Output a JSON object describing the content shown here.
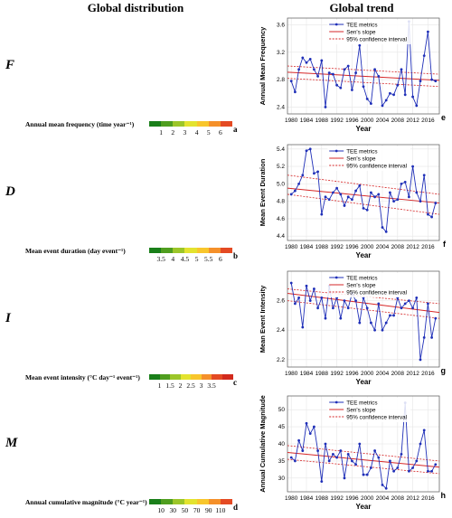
{
  "headers": {
    "left": "Global distribution",
    "right": "Global trend"
  },
  "colors": {
    "series": "#1f2fb8",
    "sen": "#d62728",
    "ci": "#d62728",
    "grid": "#e6e6e6"
  },
  "rows": [
    {
      "id": "F",
      "map_title": "Annual mean frequency (time year⁻¹)",
      "map_letter": "a",
      "cbar_colors": [
        "#1a7f1a",
        "#4f9e1f",
        "#9cc629",
        "#e3e32f",
        "#f8c62c",
        "#f5902a",
        "#e44a23"
      ],
      "cbar_ticks": [
        "1",
        "2",
        "3",
        "4",
        "5",
        "6"
      ],
      "map_palette": [
        "#3f8f25",
        "#9cc629",
        "#d7dd2c",
        "#f3c22d",
        "#f09128"
      ]
    },
    {
      "id": "D",
      "map_title": "Mean event duration (day event⁻¹)",
      "map_letter": "b",
      "cbar_colors": [
        "#1a7f1a",
        "#4f9e1f",
        "#9cc629",
        "#e3e32f",
        "#f8c62c",
        "#f5902a",
        "#e44a23"
      ],
      "cbar_ticks": [
        "3.5",
        "4",
        "4.5",
        "5",
        "5.5",
        "6"
      ],
      "map_palette": [
        "#2f8522",
        "#6cab22",
        "#cad72b",
        "#f0c62c",
        "#e5612a"
      ]
    },
    {
      "id": "I",
      "map_title": "Mean event intensity (°C day⁻¹ event⁻¹)",
      "map_letter": "c",
      "cbar_colors": [
        "#1a7f1a",
        "#4f9e1f",
        "#9cc629",
        "#e3e32f",
        "#f8c62c",
        "#f5902a",
        "#e44a23",
        "#d22a1d"
      ],
      "cbar_ticks": [
        "1",
        "1.5",
        "2",
        "2.5",
        "3",
        "3.5"
      ],
      "map_palette": [
        "#3b8d22",
        "#8ebe26",
        "#e0d92c",
        "#f4a22b",
        "#e2462a"
      ]
    },
    {
      "id": "M",
      "map_title": "Annual cumulative magnitude (°C year⁻¹)",
      "map_letter": "d",
      "cbar_colors": [
        "#1a7f1a",
        "#4f9e1f",
        "#9cc629",
        "#e3e32f",
        "#f8c62c",
        "#f5902a",
        "#e44a23"
      ],
      "cbar_ticks": [
        "10",
        "30",
        "50",
        "70",
        "90",
        "110"
      ],
      "map_palette": [
        "#1e7a1c",
        "#3b8d22",
        "#62a523",
        "#9cc629",
        "#c6d22b"
      ]
    }
  ],
  "chart_data": [
    {
      "type": "line",
      "letter": "e",
      "xlabel": "Year",
      "ylabel": "Annual Mean Frequency",
      "xlim": [
        1979,
        2019
      ],
      "ylim": [
        2.3,
        3.7
      ],
      "xticks": [
        1980,
        1984,
        1988,
        1992,
        1996,
        2000,
        2004,
        2008,
        2012,
        2016
      ],
      "yticks": [
        2.4,
        2.8,
        3.2,
        3.6
      ],
      "legend": [
        "TEE metrics",
        "Sen's slope",
        "95% confidence interval"
      ],
      "x": [
        1980,
        1981,
        1982,
        1983,
        1984,
        1985,
        1986,
        1987,
        1988,
        1989,
        1990,
        1991,
        1992,
        1993,
        1994,
        1995,
        1996,
        1997,
        1998,
        1999,
        2000,
        2001,
        2002,
        2003,
        2004,
        2005,
        2006,
        2007,
        2008,
        2009,
        2010,
        2011,
        2012,
        2013,
        2014,
        2015,
        2016,
        2017,
        2018
      ],
      "y": [
        2.78,
        2.62,
        2.95,
        3.12,
        3.05,
        3.1,
        2.95,
        2.85,
        3.08,
        2.4,
        2.9,
        2.88,
        2.72,
        2.68,
        2.95,
        3.0,
        2.65,
        2.9,
        3.3,
        2.7,
        2.52,
        2.45,
        2.95,
        2.85,
        2.42,
        2.5,
        2.6,
        2.58,
        2.72,
        2.95,
        2.58,
        3.65,
        2.55,
        2.42,
        2.78,
        3.15,
        3.5,
        2.8,
        2.78
      ],
      "sen": [
        2.91,
        2.79
      ],
      "ci_upper": [
        3.0,
        2.88
      ],
      "ci_lower": [
        2.82,
        2.7
      ]
    },
    {
      "type": "line",
      "letter": "f",
      "xlabel": "Year",
      "ylabel": "Mean Event Duration",
      "xlim": [
        1979,
        2019
      ],
      "ylim": [
        4.35,
        5.45
      ],
      "xticks": [
        1980,
        1984,
        1988,
        1992,
        1996,
        2000,
        2004,
        2008,
        2012,
        2016
      ],
      "yticks": [
        4.4,
        4.6,
        4.8,
        5.0,
        5.2,
        5.4
      ],
      "legend": [
        "TEE metrics",
        "Sen's slope",
        "95% confidence interval"
      ],
      "x": [
        1980,
        1981,
        1982,
        1983,
        1984,
        1985,
        1986,
        1987,
        1988,
        1989,
        1990,
        1991,
        1992,
        1993,
        1994,
        1995,
        1996,
        1997,
        1998,
        1999,
        2000,
        2001,
        2002,
        2003,
        2004,
        2005,
        2006,
        2007,
        2008,
        2009,
        2010,
        2011,
        2012,
        2013,
        2014,
        2015,
        2016,
        2017,
        2018
      ],
      "y": [
        4.88,
        4.92,
        5.0,
        5.1,
        5.38,
        5.4,
        5.12,
        5.14,
        4.65,
        4.85,
        4.82,
        4.9,
        4.95,
        4.88,
        4.75,
        4.85,
        4.82,
        4.92,
        4.98,
        4.72,
        4.7,
        4.9,
        4.85,
        4.88,
        4.5,
        4.45,
        4.9,
        4.8,
        4.82,
        5.0,
        5.02,
        4.85,
        5.2,
        4.9,
        4.8,
        5.1,
        4.65,
        4.62,
        4.78
      ],
      "sen": [
        4.95,
        4.78
      ],
      "ci_upper": [
        5.1,
        4.88
      ],
      "ci_lower": [
        4.88,
        4.65
      ]
    },
    {
      "type": "line",
      "letter": "g",
      "xlabel": "Year",
      "ylabel": "Mean Event Intensity",
      "xlim": [
        1979,
        2019
      ],
      "ylim": [
        2.15,
        2.8
      ],
      "xticks": [
        1980,
        1984,
        1988,
        1992,
        1996,
        2000,
        2004,
        2008,
        2012,
        2016
      ],
      "yticks": [
        2.2,
        2.4,
        2.6
      ],
      "legend": [
        "TEE metrics",
        "Sen's slope",
        "95% confidence interval"
      ],
      "x": [
        1980,
        1981,
        1982,
        1983,
        1984,
        1985,
        1986,
        1987,
        1988,
        1989,
        1990,
        1991,
        1992,
        1993,
        1994,
        1995,
        1996,
        1997,
        1998,
        1999,
        2000,
        2001,
        2002,
        2003,
        2004,
        2005,
        2006,
        2007,
        2008,
        2009,
        2010,
        2011,
        2012,
        2013,
        2014,
        2015,
        2016,
        2017,
        2018
      ],
      "y": [
        2.72,
        2.58,
        2.62,
        2.42,
        2.7,
        2.6,
        2.68,
        2.55,
        2.62,
        2.48,
        2.7,
        2.55,
        2.62,
        2.48,
        2.6,
        2.55,
        2.65,
        2.6,
        2.45,
        2.62,
        2.55,
        2.45,
        2.4,
        2.58,
        2.4,
        2.45,
        2.5,
        2.5,
        2.62,
        2.55,
        2.58,
        2.6,
        2.55,
        2.62,
        2.2,
        2.35,
        2.58,
        2.35,
        2.48
      ],
      "sen": [
        2.65,
        2.52
      ],
      "ci_upper": [
        2.68,
        2.58
      ],
      "ci_lower": [
        2.6,
        2.48
      ]
    },
    {
      "type": "line",
      "letter": "h",
      "xlabel": "Year",
      "ylabel": "Annual Cumulative Magnitude",
      "xlim": [
        1979,
        2019
      ],
      "ylim": [
        26,
        54
      ],
      "xticks": [
        1980,
        1984,
        1988,
        1992,
        1996,
        2000,
        2004,
        2008,
        2012,
        2016
      ],
      "yticks": [
        30,
        35,
        40,
        45,
        50
      ],
      "legend": [
        "TEE metrics",
        "Sen's slope",
        "95% confidence interval"
      ],
      "x": [
        1980,
        1981,
        1982,
        1983,
        1984,
        1985,
        1986,
        1987,
        1988,
        1989,
        1990,
        1991,
        1992,
        1993,
        1994,
        1995,
        1996,
        1997,
        1998,
        1999,
        2000,
        2001,
        2002,
        2003,
        2004,
        2005,
        2006,
        2007,
        2008,
        2009,
        2010,
        2011,
        2012,
        2013,
        2014,
        2015,
        2016,
        2017,
        2018
      ],
      "y": [
        36,
        35,
        41,
        38,
        46,
        43,
        45,
        38,
        29,
        40,
        35,
        37,
        36,
        38,
        30,
        37,
        35,
        34,
        40,
        31,
        31,
        33,
        38,
        36,
        28,
        27,
        35,
        32,
        33,
        37,
        52,
        32,
        33,
        35,
        40,
        44,
        32,
        32,
        34
      ],
      "sen": [
        37.5,
        33.2
      ],
      "ci_upper": [
        39.5,
        35.0
      ],
      "ci_lower": [
        35.5,
        31.3
      ]
    }
  ]
}
